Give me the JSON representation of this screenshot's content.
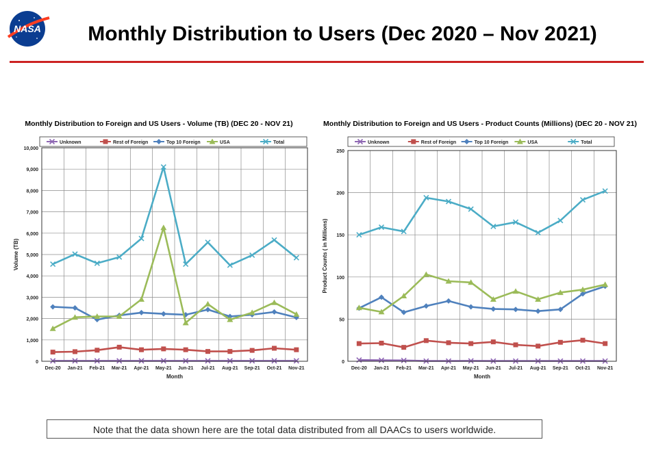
{
  "page": {
    "title": "Monthly Distribution to Users (Dec 2020 – Nov 2021)",
    "logo_text": "NASA",
    "note": "Note that the data shown here are the total data distributed from all DAACs to users worldwide."
  },
  "colors": {
    "Unknown": "#8e67b3",
    "Rest of Foreign": "#c0504d",
    "Top 10 Foreign": "#4f81bd",
    "USA": "#9bbb59",
    "Total": "#4bacc6",
    "rule": "#cc2222"
  },
  "chart_data": [
    {
      "type": "line",
      "title": "Monthly Distribution to Foreign and US Users - Volume  (TB) (DEC 20 - NOV 21)",
      "xlabel": "Month",
      "ylabel": "Volume (TB)",
      "ylim": [
        0,
        10000
      ],
      "yticks": [
        "0",
        "1,000",
        "2,000",
        "3,000",
        "4,000",
        "5,000",
        "6,000",
        "7,000",
        "8,000",
        "9,000",
        "10,000"
      ],
      "grid": true,
      "legend": "top",
      "categories": [
        "Dec-20",
        "Jan-21",
        "Feb-21",
        "Mar-21",
        "Apr-21",
        "May-21",
        "Jun-21",
        "Jul-21",
        "Aug-21",
        "Sep-21",
        "Oct-21",
        "Nov-21"
      ],
      "series": [
        {
          "name": "Unknown",
          "marker": "x",
          "values": [
            20,
            20,
            20,
            20,
            20,
            20,
            20,
            20,
            20,
            20,
            20,
            20
          ]
        },
        {
          "name": "Rest of Foreign",
          "marker": "square",
          "values": [
            430,
            450,
            520,
            660,
            540,
            580,
            540,
            460,
            460,
            510,
            610,
            540
          ]
        },
        {
          "name": "Top 10 Foreign",
          "marker": "diamond",
          "values": [
            2550,
            2500,
            1950,
            2150,
            2280,
            2220,
            2180,
            2420,
            2100,
            2180,
            2310,
            2050
          ]
        },
        {
          "name": "USA",
          "marker": "triangle",
          "values": [
            1530,
            2060,
            2100,
            2100,
            2900,
            6260,
            1800,
            2680,
            1950,
            2280,
            2750,
            2200
          ]
        },
        {
          "name": "Total",
          "marker": "x",
          "values": [
            4550,
            5020,
            4590,
            4880,
            5750,
            9100,
            4550,
            5570,
            4500,
            4970,
            5680,
            4850
          ]
        }
      ]
    },
    {
      "type": "line",
      "title": "Monthly Distribution to Foreign and US Users - Product Counts (Millions) (DEC 20 - NOV 21)",
      "xlabel": "Month",
      "ylabel": "Product Counts ( in Millions)",
      "ylim": [
        0,
        250
      ],
      "yticks": [
        "0",
        "50",
        "100",
        "150",
        "200",
        "250"
      ],
      "grid": true,
      "legend": "top",
      "categories": [
        "Dec-20",
        "Jan-21",
        "Feb-21",
        "Mar-21",
        "Apr-21",
        "May-21",
        "Jun-21",
        "Jul-21",
        "Aug-21",
        "Sep-21",
        "Oct-21",
        "Nov-21"
      ],
      "series": [
        {
          "name": "Unknown",
          "marker": "x",
          "values": [
            1.5,
            1.2,
            1.0,
            0.3,
            0.3,
            0.5,
            0.3,
            0.3,
            0.3,
            0.3,
            0.3,
            0.3
          ]
        },
        {
          "name": "Rest of Foreign",
          "marker": "square",
          "values": [
            21,
            21.5,
            16.5,
            24.5,
            22,
            21,
            23,
            19.5,
            18,
            22.5,
            25,
            21
          ]
        },
        {
          "name": "Top 10 Foreign",
          "marker": "diamond",
          "values": [
            63,
            76,
            58,
            65.5,
            71.5,
            64.5,
            62,
            61.5,
            59.5,
            61.5,
            80,
            89
          ]
        },
        {
          "name": "USA",
          "marker": "triangle",
          "values": [
            63.5,
            58.5,
            77.5,
            103,
            95,
            93.5,
            73.5,
            83,
            73.5,
            81.5,
            85,
            91
          ]
        },
        {
          "name": "Total",
          "marker": "x",
          "values": [
            150,
            159,
            154,
            194,
            189.5,
            180.5,
            160,
            165,
            152.5,
            167,
            191.5,
            202
          ]
        }
      ]
    }
  ]
}
